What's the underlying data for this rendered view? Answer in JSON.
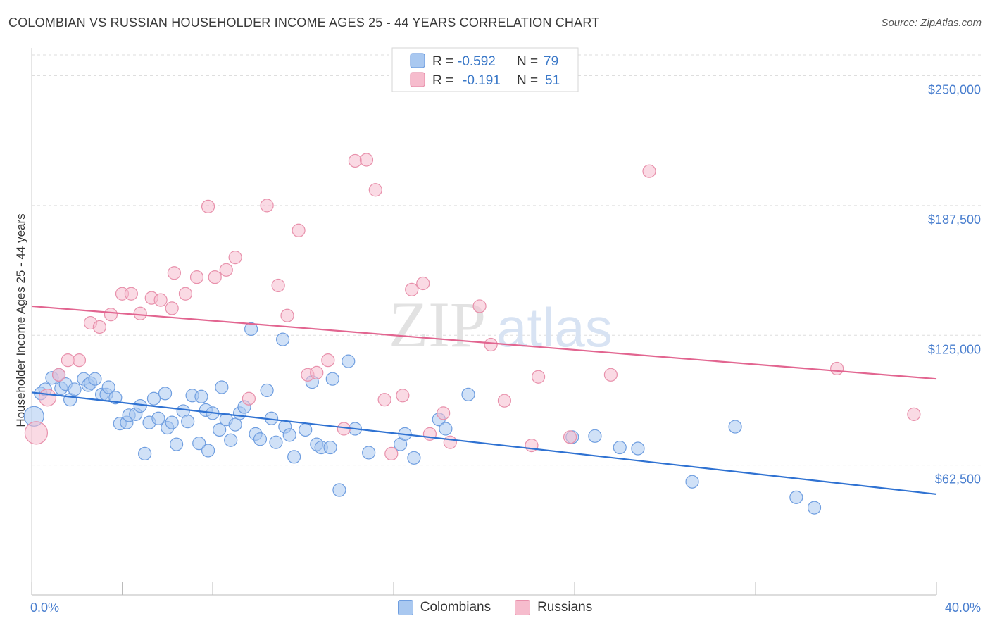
{
  "header": {
    "title": "COLOMBIAN VS RUSSIAN HOUSEHOLDER INCOME AGES 25 - 44 YEARS CORRELATION CHART",
    "source": "Source: ZipAtlas.com"
  },
  "watermark": {
    "zip": "ZIP",
    "atlas": "atlas"
  },
  "colors": {
    "colombians_fill": "#a9c8f0",
    "colombians_stroke": "#6f9ee0",
    "colombians_line": "#2f72d2",
    "russians_fill": "#f6bccd",
    "russians_stroke": "#e890ab",
    "russians_line": "#e26590",
    "tick_label": "#4a7fcf",
    "grid": "#dedede"
  },
  "legend": {
    "r_label": "R =",
    "n_label": "N =",
    "rows": [
      {
        "series": "Colombians",
        "r": "-0.592",
        "n": "79"
      },
      {
        "series": "Russians",
        "r": "-0.191",
        "n": "51"
      }
    ]
  },
  "chart_data": {
    "type": "scatter",
    "title": "COLOMBIAN VS RUSSIAN HOUSEHOLDER INCOME AGES 25 - 44 YEARS CORRELATION CHART",
    "xlabel": "",
    "ylabel": "Householder Income Ages 25 - 44 years",
    "xlim": [
      0,
      40
    ],
    "ylim": [
      0,
      260000
    ],
    "x_tick_labels": [
      "0.0%",
      "40.0%"
    ],
    "y_ticks": [
      {
        "value": 62500,
        "label": "$62,500"
      },
      {
        "value": 125000,
        "label": "$125,000"
      },
      {
        "value": 187500,
        "label": "$187,500"
      },
      {
        "value": 250000,
        "label": "$250,000"
      }
    ],
    "grid": true,
    "legend_position": "top-center",
    "series": [
      {
        "name": "Colombians",
        "r": -0.592,
        "n": 79,
        "trend": [
          [
            0,
            97500
          ],
          [
            40,
            48500
          ]
        ],
        "points": [
          [
            0.1,
            86000,
            14
          ],
          [
            0.4,
            97000,
            9
          ],
          [
            0.6,
            99000,
            9
          ],
          [
            0.9,
            104500,
            9
          ],
          [
            1.2,
            106000,
            9
          ],
          [
            1.3,
            99500,
            9
          ],
          [
            1.5,
            101500,
            9
          ],
          [
            1.7,
            94000,
            9
          ],
          [
            1.9,
            99000,
            9
          ],
          [
            2.3,
            104000,
            9
          ],
          [
            2.5,
            101000,
            9
          ],
          [
            2.6,
            102000,
            9
          ],
          [
            2.8,
            104000,
            9
          ],
          [
            3.1,
            96500,
            9
          ],
          [
            3.3,
            96500,
            9
          ],
          [
            3.4,
            100000,
            9
          ],
          [
            3.7,
            95000,
            9
          ],
          [
            3.9,
            82500,
            9
          ],
          [
            4.2,
            83000,
            9
          ],
          [
            4.3,
            86500,
            9
          ],
          [
            4.6,
            87000,
            9
          ],
          [
            4.8,
            91000,
            9
          ],
          [
            5.0,
            68000,
            9
          ],
          [
            5.2,
            83000,
            9
          ],
          [
            5.4,
            94500,
            9
          ],
          [
            5.6,
            85000,
            9
          ],
          [
            5.9,
            97000,
            9
          ],
          [
            6.0,
            80500,
            9
          ],
          [
            6.2,
            83000,
            9
          ],
          [
            6.4,
            72500,
            9
          ],
          [
            6.7,
            88500,
            9
          ],
          [
            6.9,
            83500,
            9
          ],
          [
            7.1,
            96000,
            9
          ],
          [
            7.4,
            73000,
            9
          ],
          [
            7.5,
            95500,
            9
          ],
          [
            7.7,
            89000,
            9
          ],
          [
            7.8,
            69500,
            9
          ],
          [
            8.0,
            87500,
            9
          ],
          [
            8.3,
            79500,
            9
          ],
          [
            8.4,
            100000,
            9
          ],
          [
            8.6,
            84500,
            9
          ],
          [
            8.8,
            74500,
            9
          ],
          [
            9.0,
            82000,
            9
          ],
          [
            9.2,
            87500,
            9
          ],
          [
            9.4,
            90500,
            9
          ],
          [
            9.7,
            128000,
            9
          ],
          [
            9.9,
            77500,
            9
          ],
          [
            10.1,
            75000,
            9
          ],
          [
            10.4,
            98500,
            9
          ],
          [
            10.6,
            85000,
            9
          ],
          [
            10.8,
            73500,
            9
          ],
          [
            11.1,
            123000,
            9
          ],
          [
            11.2,
            81000,
            9
          ],
          [
            11.4,
            77000,
            9
          ],
          [
            11.6,
            66500,
            9
          ],
          [
            12.1,
            79500,
            9
          ],
          [
            12.4,
            102500,
            9
          ],
          [
            12.6,
            72500,
            9
          ],
          [
            12.8,
            71000,
            9
          ],
          [
            13.2,
            71000,
            9
          ],
          [
            13.3,
            104000,
            9
          ],
          [
            13.6,
            50500,
            9
          ],
          [
            14.0,
            112500,
            9
          ],
          [
            14.3,
            80000,
            9
          ],
          [
            14.9,
            68500,
            9
          ],
          [
            16.3,
            72500,
            9
          ],
          [
            16.5,
            77500,
            9
          ],
          [
            16.9,
            66000,
            9
          ],
          [
            18.0,
            84500,
            9
          ],
          [
            18.3,
            80000,
            9
          ],
          [
            19.3,
            96500,
            9
          ],
          [
            23.9,
            76000,
            9
          ],
          [
            24.9,
            76500,
            9
          ],
          [
            26.0,
            71000,
            9
          ],
          [
            26.8,
            70500,
            9
          ],
          [
            29.2,
            54500,
            9
          ],
          [
            31.1,
            81000,
            9
          ],
          [
            33.8,
            47000,
            9
          ],
          [
            34.6,
            42000,
            9
          ]
        ]
      },
      {
        "name": "Russians",
        "r": -0.191,
        "n": 51,
        "trend": [
          [
            0,
            139000
          ],
          [
            40,
            104000
          ]
        ],
        "points": [
          [
            0.2,
            78000,
            16
          ],
          [
            0.7,
            95000,
            12
          ],
          [
            1.2,
            106000,
            9
          ],
          [
            1.6,
            113000,
            9
          ],
          [
            2.1,
            113000,
            9
          ],
          [
            2.6,
            131000,
            9
          ],
          [
            3.0,
            129000,
            9
          ],
          [
            3.5,
            135000,
            9
          ],
          [
            4.0,
            145000,
            9
          ],
          [
            4.4,
            145000,
            9
          ],
          [
            4.8,
            135500,
            9
          ],
          [
            5.3,
            143000,
            9
          ],
          [
            5.7,
            142000,
            9
          ],
          [
            6.2,
            138000,
            9
          ],
          [
            6.3,
            155000,
            9
          ],
          [
            6.8,
            145000,
            9
          ],
          [
            7.3,
            153000,
            9
          ],
          [
            7.8,
            187000,
            9
          ],
          [
            8.1,
            153000,
            9
          ],
          [
            8.6,
            156500,
            9
          ],
          [
            9.0,
            162500,
            9
          ],
          [
            9.6,
            94500,
            9
          ],
          [
            10.4,
            187500,
            9
          ],
          [
            10.9,
            149000,
            9
          ],
          [
            11.3,
            134500,
            9
          ],
          [
            11.8,
            175500,
            9
          ],
          [
            12.2,
            106000,
            9
          ],
          [
            12.6,
            107000,
            9
          ],
          [
            13.1,
            113000,
            9
          ],
          [
            13.8,
            80000,
            9
          ],
          [
            14.3,
            209000,
            9
          ],
          [
            14.8,
            209500,
            9
          ],
          [
            15.2,
            195000,
            9
          ],
          [
            15.6,
            94000,
            9
          ],
          [
            15.9,
            68000,
            9
          ],
          [
            16.4,
            96000,
            9
          ],
          [
            16.8,
            147000,
            9
          ],
          [
            17.3,
            150000,
            9
          ],
          [
            17.6,
            77500,
            9
          ],
          [
            18.2,
            87500,
            9
          ],
          [
            18.5,
            73500,
            9
          ],
          [
            19.8,
            139000,
            9
          ],
          [
            20.3,
            120500,
            9
          ],
          [
            20.9,
            93500,
            9
          ],
          [
            22.1,
            72000,
            9
          ],
          [
            22.4,
            105000,
            9
          ],
          [
            23.8,
            76000,
            9
          ],
          [
            25.6,
            106000,
            9
          ],
          [
            27.3,
            204000,
            9
          ],
          [
            35.6,
            109000,
            9
          ],
          [
            39.0,
            87000,
            9
          ]
        ]
      }
    ]
  }
}
